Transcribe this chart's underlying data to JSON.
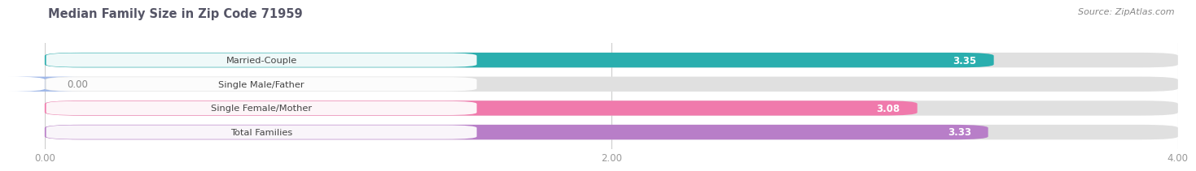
{
  "title": "Median Family Size in Zip Code 71959",
  "source": "Source: ZipAtlas.com",
  "categories": [
    "Married-Couple",
    "Single Male/Father",
    "Single Female/Mother",
    "Total Families"
  ],
  "values": [
    3.35,
    0.0,
    3.08,
    3.33
  ],
  "bar_colors": [
    "#2AAEAE",
    "#A0B8E8",
    "#F07AAC",
    "#B87EC8"
  ],
  "xlim": [
    0,
    4.0
  ],
  "xticks": [
    0.0,
    2.0,
    4.0
  ],
  "xticklabels": [
    "0.00",
    "2.00",
    "4.00"
  ],
  "bar_height": 0.62,
  "bg_color": "#f7f7f7",
  "bar_bg_color": "#e0e0e0",
  "gap_color": "#ffffff"
}
